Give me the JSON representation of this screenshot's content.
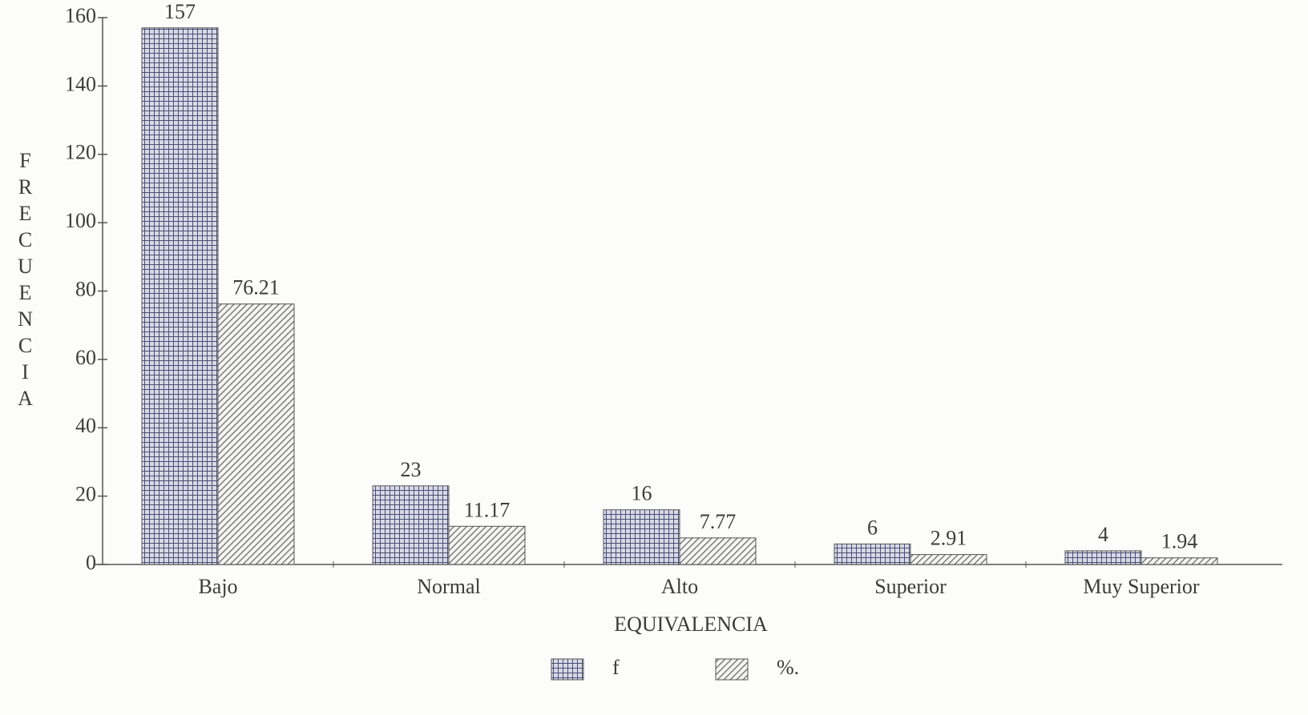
{
  "chart_data": {
    "type": "bar",
    "x_label": "EQUIVALENCIA",
    "y_label": "FRECUENCIA",
    "categories": [
      "Bajo",
      "Normal",
      "Alto",
      "Superior",
      "Muy Superior"
    ],
    "series": [
      {
        "name": "f",
        "color": "#4a4e78",
        "values": [
          157,
          23,
          16,
          6,
          4
        ]
      },
      {
        "name": "%.",
        "color": "#6a6a6a",
        "values": [
          76.21,
          11.17,
          7.77,
          2.91,
          1.94
        ]
      }
    ],
    "ylim": [
      0,
      160
    ],
    "yticks": [
      0,
      20,
      40,
      60,
      80,
      100,
      120,
      140,
      160
    ],
    "grid": false,
    "legend": "bottom"
  }
}
